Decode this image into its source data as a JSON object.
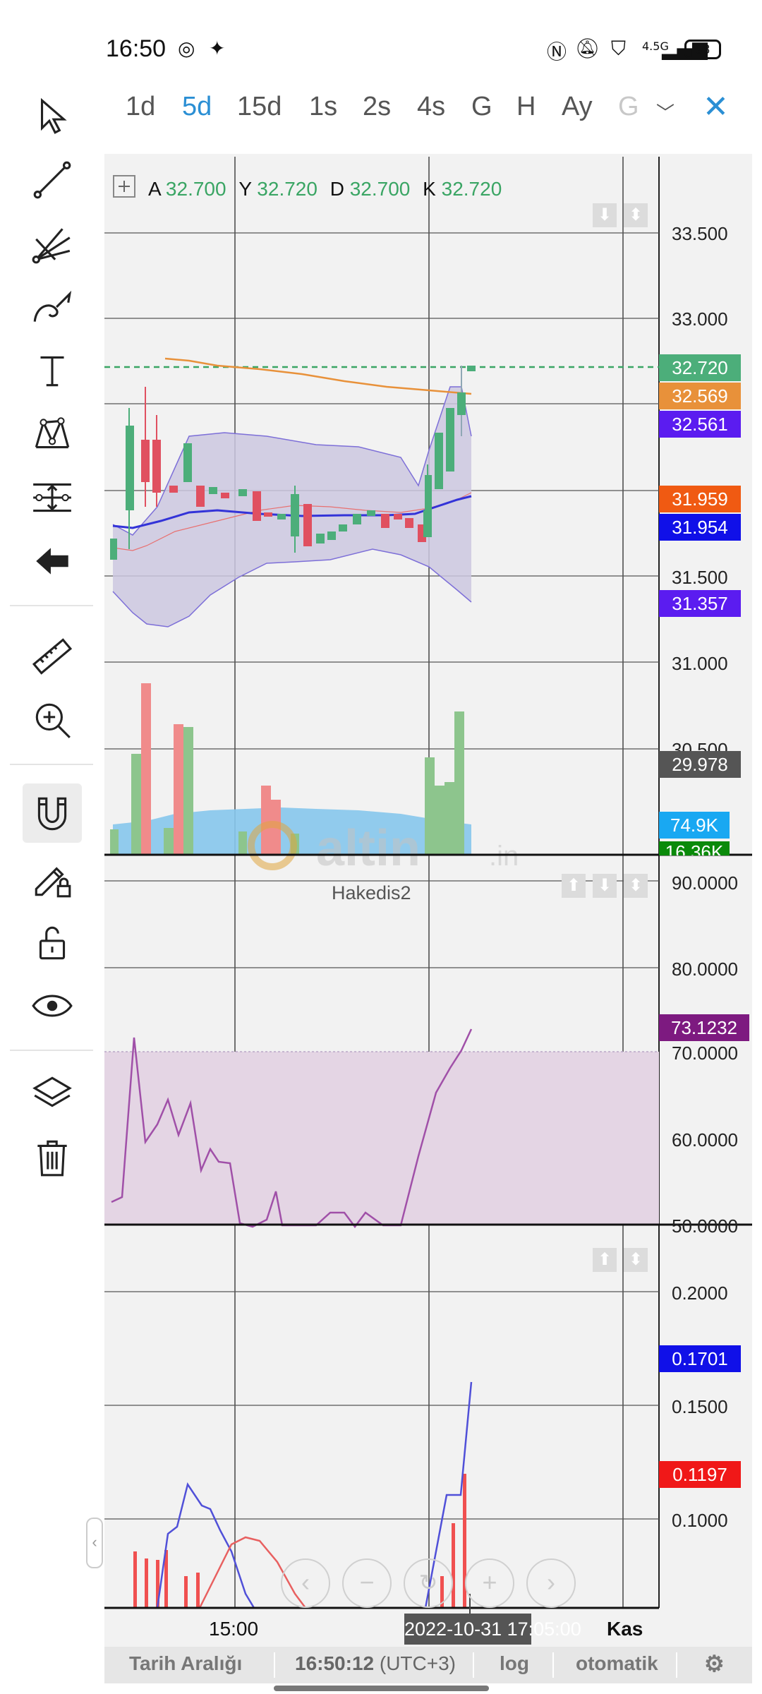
{
  "status_bar": {
    "time": "16:50",
    "battery": "98",
    "network": "4.5G"
  },
  "timeframes": [
    {
      "label": "1d",
      "state": "normal"
    },
    {
      "label": "5d",
      "state": "active"
    },
    {
      "label": "15d",
      "state": "normal"
    },
    {
      "label": "1s",
      "state": "normal"
    },
    {
      "label": "2s",
      "state": "normal"
    },
    {
      "label": "4s",
      "state": "normal"
    },
    {
      "label": "G",
      "state": "normal"
    },
    {
      "label": "H",
      "state": "normal"
    },
    {
      "label": "Ay",
      "state": "normal"
    },
    {
      "label": "G",
      "state": "disabled"
    }
  ],
  "ohlc": {
    "a_label": "A",
    "a_value": "32.700",
    "y_label": "Y",
    "y_value": "32.720",
    "d_label": "D",
    "d_value": "32.700",
    "k_label": "K",
    "k_value": "32.720"
  },
  "price_pane": {
    "axis_labels": [
      "33.500",
      "33.000",
      "31.500",
      "31.000",
      "30.500"
    ],
    "tags": [
      {
        "value": "32.720",
        "color": "#4cae7a"
      },
      {
        "value": "32.569",
        "color": "#e8913a"
      },
      {
        "value": "32.561",
        "color": "#5b1cf0"
      },
      {
        "value": "31.959",
        "color": "#f05a12"
      },
      {
        "value": "31.954",
        "color": "#1010e8"
      },
      {
        "value": "31.357",
        "color": "#5b1cf0"
      },
      {
        "value": "29.978",
        "color": "#555555"
      },
      {
        "value": "74.9K",
        "color": "#19a8f2"
      },
      {
        "value": "16.36K",
        "color": "#0a8a0a"
      }
    ]
  },
  "indicator_pane": {
    "label": "Hakedis2",
    "axis_labels": [
      "90.0000",
      "80.0000",
      "70.0000",
      "60.0000",
      "50.0000"
    ],
    "tag": {
      "value": "73.1232",
      "color": "#7d1a80"
    }
  },
  "macd_pane": {
    "axis_labels": [
      "0.2000",
      "0.1500",
      "0.1000"
    ],
    "tags": [
      {
        "value": "0.1701",
        "color": "#1010e8"
      },
      {
        "value": "0.1197",
        "color": "#f01818"
      }
    ]
  },
  "time_axis": {
    "t1": "15:00",
    "cursor": "2022-10-31 17:05:00",
    "t2": "Kas"
  },
  "watermark": {
    "text": "altin",
    "suffix": ".in"
  },
  "bottom_bar": {
    "range": "Tarih Aralığı",
    "clock": "16:50:12",
    "tz": "(UTC+3)",
    "log": "log",
    "auto": "otomatik"
  },
  "tools": [
    "pointer-icon",
    "trend-line-icon",
    "pitchfork-icon",
    "brush-icon",
    "text-icon",
    "pattern-icon",
    "measure-lines-icon",
    "back-arrow-icon",
    "ruler-icon",
    "zoom-in-icon",
    "magnet-icon",
    "pencil-lock-icon",
    "unlock-icon",
    "eye-icon",
    "layers-icon",
    "trash-icon"
  ]
}
